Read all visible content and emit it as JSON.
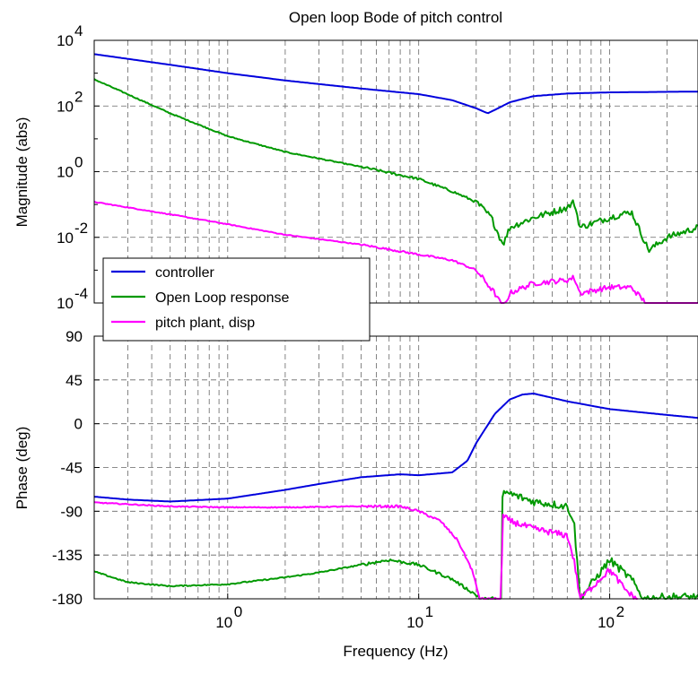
{
  "chart_data": [
    {
      "type": "line",
      "title": "Open loop Bode of pitch control",
      "xlabel": "",
      "ylabel": "Magnitude (abs)",
      "xscale": "log",
      "yscale": "log",
      "xlim": [
        0.2,
        290
      ],
      "ylim": [
        0.0001,
        10000
      ],
      "yticks": [
        {
          "base": "10",
          "exp": "4"
        },
        {
          "base": "10",
          "exp": "2"
        },
        {
          "base": "10",
          "exp": "0"
        },
        {
          "base": "10",
          "exp": "-2"
        },
        {
          "base": "10",
          "exp": "-4"
        }
      ],
      "grid": true,
      "legend": {
        "position": "bottom-left",
        "entries": [
          "controller",
          "Open Loop response",
          "pitch plant, disp"
        ]
      },
      "series": [
        {
          "name": "controller",
          "color": "#0000dd",
          "noise": 0,
          "x": [
            0.2,
            0.5,
            1,
            2,
            5,
            10,
            15,
            20,
            23,
            26,
            30,
            40,
            60,
            100,
            200,
            290
          ],
          "y": [
            3800,
            1800,
            1000,
            600,
            340,
            230,
            150,
            85,
            60,
            85,
            130,
            200,
            240,
            260,
            270,
            275
          ]
        },
        {
          "name": "Open Loop response",
          "color": "#009900",
          "noise": 0.12,
          "x": [
            0.2,
            0.5,
            1,
            2,
            5,
            10,
            15,
            20,
            24,
            27,
            28,
            30,
            40,
            60,
            65,
            70,
            100,
            130,
            160,
            200,
            290
          ],
          "y": [
            650,
            60,
            12,
            4,
            1.4,
            0.6,
            0.25,
            0.12,
            0.04,
            0.008,
            0.007,
            0.02,
            0.04,
            0.08,
            0.12,
            0.02,
            0.04,
            0.06,
            0.004,
            0.01,
            0.02
          ]
        },
        {
          "name": "pitch plant, disp",
          "color": "#ff00ff",
          "noise": 0.1,
          "x": [
            0.2,
            0.5,
            1,
            2,
            5,
            10,
            15,
            20,
            25,
            27,
            28,
            30,
            40,
            60,
            65,
            70,
            100,
            130,
            160,
            200,
            290
          ],
          "y": [
            0.12,
            0.05,
            0.025,
            0.012,
            0.006,
            0.003,
            0.002,
            0.001,
            0.0002,
            9e-05,
            8e-05,
            0.0002,
            0.0004,
            0.0005,
            0.0006,
            0.0002,
            0.0003,
            0.0003,
            8e-05,
            8e-05,
            8e-05
          ]
        }
      ]
    },
    {
      "type": "line",
      "title": "",
      "xlabel": "Frequency (Hz)",
      "ylabel": "Phase (deg)",
      "xscale": "log",
      "xlim": [
        0.2,
        290
      ],
      "ylim": [
        -180,
        90
      ],
      "yticks": [
        90,
        45,
        0,
        -45,
        -90,
        -135,
        -180
      ],
      "xticks": [
        {
          "base": "10",
          "exp": "0"
        },
        {
          "base": "10",
          "exp": "1"
        },
        {
          "base": "10",
          "exp": "2"
        }
      ],
      "grid": true,
      "series": [
        {
          "name": "controller",
          "color": "#0000dd",
          "noise": 0,
          "x": [
            0.2,
            0.3,
            0.5,
            1,
            2,
            3,
            5,
            8,
            10,
            15,
            18,
            20,
            25,
            30,
            35,
            40,
            60,
            100,
            200,
            290
          ],
          "y": [
            -75,
            -78,
            -80,
            -77,
            -68,
            -62,
            -55,
            -52,
            -53,
            -50,
            -38,
            -20,
            10,
            25,
            30,
            31,
            23,
            15,
            9,
            6
          ]
        },
        {
          "name": "Open Loop response",
          "color": "#009900",
          "noise": 5,
          "x": [
            0.2,
            0.3,
            0.5,
            1,
            2,
            3,
            5,
            7,
            10,
            15,
            20,
            22,
            27,
            27.5,
            30,
            40,
            60,
            65,
            70,
            100,
            130,
            150,
            200,
            290
          ],
          "y": [
            -152,
            -163,
            -167,
            -165,
            -158,
            -153,
            -145,
            -140,
            -145,
            -160,
            -176,
            -182,
            -182,
            -70,
            -72,
            -80,
            -85,
            -100,
            -180,
            -140,
            -160,
            -180,
            -178,
            -178
          ]
        },
        {
          "name": "pitch plant, disp",
          "color": "#ff00ff",
          "noise": 4,
          "x": [
            0.2,
            0.5,
            1,
            2,
            5,
            8,
            10,
            13,
            16,
            19,
            21,
            27,
            27.5,
            30,
            40,
            60,
            65,
            70,
            100,
            120,
            140
          ],
          "y": [
            -81,
            -85,
            -86,
            -86,
            -85,
            -85,
            -90,
            -100,
            -120,
            -150,
            -182,
            -182,
            -95,
            -100,
            -108,
            -115,
            -140,
            -180,
            -150,
            -170,
            -182
          ]
        }
      ]
    }
  ]
}
